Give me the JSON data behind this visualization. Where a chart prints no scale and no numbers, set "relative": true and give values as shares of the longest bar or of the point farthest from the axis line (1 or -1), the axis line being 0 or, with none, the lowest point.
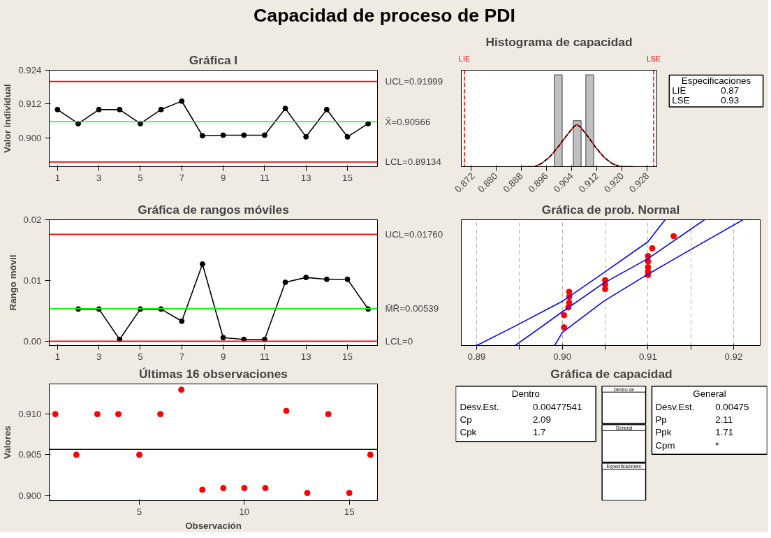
{
  "chart_data": [
    {
      "type": "other",
      "title": "Capacidad de proceso de PDI"
    },
    {
      "type": "line",
      "title": "Gráfica I",
      "ylabel": "Valor individual",
      "marker": "circle",
      "x": [
        1,
        2,
        3,
        4,
        5,
        6,
        7,
        8,
        9,
        10,
        11,
        12,
        13,
        14,
        15,
        16
      ],
      "series": [
        {
          "color": "#000000",
          "values": [
            0.91,
            0.905,
            0.91,
            0.91,
            0.905,
            0.91,
            0.913,
            0.9007,
            0.9009,
            0.9009,
            0.9009,
            0.9104,
            0.9003,
            0.91,
            0.9003,
            0.905
          ]
        }
      ],
      "xlim": [
        0.6,
        16.45
      ],
      "xticks": [
        1,
        3,
        5,
        7,
        9,
        11,
        13,
        15
      ],
      "ylim": [
        0.8897,
        0.924
      ],
      "yticks": [
        {
          "value": 0.9,
          "label": "0.900"
        },
        0.912,
        0.924
      ],
      "ref_lines": [
        {
          "axis": "y",
          "value": 0.91999,
          "label": "UCL=0.91999",
          "color": "#ff0000"
        },
        {
          "axis": "y",
          "value": 0.90566,
          "label": "X̄=0.90566",
          "color": "#00ff00"
        },
        {
          "axis": "y",
          "value": 0.89134,
          "label": "LCL=0.89134",
          "color": "#ff0000"
        }
      ]
    },
    {
      "type": "histogram",
      "title": "Histograma de capacidad",
      "relative": true,
      "series": [
        {
          "type": "histogram",
          "color": "#c0c0c0",
          "bins": [
            0.8985,
            0.901,
            0.9045,
            0.907,
            0.9085,
            0.911
          ],
          "values": [
            1,
            0,
            0.5,
            0,
            1
          ]
        },
        {
          "type": "line",
          "color": "#ff0000",
          "x": [
            0.8878,
            0.8923,
            0.8944,
            0.8969,
            0.8994,
            0.9019,
            0.9044,
            0.9056,
            0.9068,
            0.9093,
            0.9118,
            0.9143,
            0.9168,
            0.9193,
            0.9234
          ],
          "values": [
            0,
            0,
            0.034,
            0.101,
            0.201,
            0.316,
            0.425,
            0.46,
            0.431,
            0.322,
            0.201,
            0.101,
            0.034,
            0,
            0
          ]
        },
        {
          "type": "line",
          "color": "#000000",
          "line_style": "dashed",
          "x": [
            0.8878,
            0.8923,
            0.8944,
            0.8969,
            0.8994,
            0.9019,
            0.9044,
            0.9056,
            0.9068,
            0.9093,
            0.9118,
            0.9143,
            0.9168,
            0.9193,
            0.9234
          ],
          "values": [
            0,
            0,
            0.034,
            0.101,
            0.201,
            0.316,
            0.425,
            0.46,
            0.431,
            0.322,
            0.201,
            0.101,
            0.034,
            0,
            0
          ]
        }
      ],
      "xlim": [
        0.869,
        0.931
      ],
      "xticks": [
        0.872,
        {
          "value": 0.88,
          "label": "0.880"
        },
        0.888,
        0.896,
        0.904,
        0.912,
        {
          "value": 0.92,
          "label": "0.920"
        },
        0.928
      ],
      "ref_lines": [
        {
          "axis": "x",
          "value": 0.87,
          "label": "LIE",
          "color": "#ff0000",
          "line_style": "dashed"
        },
        {
          "axis": "x",
          "value": 0.93,
          "label": "LSE",
          "color": "#ff0000",
          "line_style": "dashed"
        }
      ]
    },
    {
      "type": "other",
      "annotations": [
        "Especificaciones",
        "LIE\t0.87",
        "LSE\t0.93"
      ]
    },
    {
      "type": "line",
      "title": "Gráfica de rangos móviles",
      "ylabel": "Rango móvil",
      "marker": "circle",
      "series": [
        {
          "color": "#000000",
          "x": [
            2,
            3,
            4,
            5,
            6,
            7,
            8,
            9,
            10,
            11,
            12,
            13,
            14,
            15,
            16
          ],
          "values": [
            0.0053,
            0.0053,
            0.0003,
            0.0053,
            0.0053,
            0.0033,
            0.0127,
            0.0006,
            0.0003,
            0.0003,
            0.0097,
            0.0105,
            0.0102,
            0.0102,
            0.0053
          ]
        }
      ],
      "xlim": [
        0.6,
        16.45
      ],
      "xticks": [
        1,
        3,
        5,
        7,
        9,
        11,
        13,
        15
      ],
      "ylim": [
        -0.0007,
        0.02
      ],
      "yticks": [
        {
          "value": 0,
          "label": "0.00"
        },
        {
          "value": 0.01,
          "label": "0.01"
        },
        {
          "value": 0.02,
          "label": "0.02"
        }
      ],
      "ref_lines": [
        {
          "axis": "y",
          "value": 0.0176,
          "label": "UCL=0.01760",
          "color": "#ff0000"
        },
        {
          "axis": "y",
          "value": 0.00539,
          "label": "M̄R̄=0.00539",
          "color": "#00ff00"
        },
        {
          "axis": "y",
          "value": 0,
          "label": "LCL=0",
          "color": "#ff0000"
        }
      ]
    },
    {
      "type": "scatter",
      "title": "Gráfica de prob. Normal",
      "relative": true,
      "marker": "circle",
      "grid": "x",
      "series": [
        {
          "color": "#ff0000",
          "x": [
            0.9002,
            0.9002,
            0.9007,
            0.9008,
            0.9008,
            0.9008,
            0.905,
            0.905,
            0.905,
            0.91,
            0.91,
            0.91,
            0.91,
            0.91,
            0.9105,
            0.913
          ],
          "values": [
            0.144,
            0.241,
            0.303,
            0.34,
            0.388,
            0.427,
            0.449,
            0.485,
            0.52,
            0.561,
            0.588,
            0.623,
            0.67,
            0.711,
            0.773,
            0.87
          ]
        },
        {
          "type": "line",
          "marker": "none",
          "color": "#0000ff",
          "x": [
            0.8945,
            0.9,
            0.9048,
            0.91,
            0.9166
          ],
          "values": [
            0,
            0.268,
            0.495,
            0.691,
            1
          ]
        },
        {
          "type": "line",
          "marker": "none",
          "color": "#0000ff",
          "x": [
            0.8991,
            0.9,
            0.9048,
            0.91,
            0.9134,
            0.9211
          ],
          "values": [
            0,
            0.103,
            0.351,
            0.567,
            0.701,
            1
          ]
        },
        {
          "type": "line",
          "marker": "none",
          "color": "#0000ff",
          "x": [
            0.89,
            0.8945,
            0.9,
            0.9048,
            0.91,
            0.912
          ],
          "values": [
            0,
            0.155,
            0.351,
            0.577,
            0.825,
            1
          ]
        }
      ],
      "xlim": [
        0.8882,
        0.9231
      ],
      "xticks": [
        0.89,
        {
          "value": 0.895,
          "label": null
        },
        {
          "value": 0.9,
          "label": "0.90"
        },
        {
          "value": 0.905,
          "label": null
        },
        0.91,
        {
          "value": 0.915,
          "label": null
        },
        0.92
      ]
    },
    {
      "type": "scatter",
      "title": "Últimas 16 observaciones",
      "xlabel": "Observación",
      "ylabel": "Valores",
      "marker": "circle",
      "x": [
        1,
        2,
        3,
        4,
        5,
        6,
        7,
        8,
        9,
        10,
        11,
        12,
        13,
        14,
        15,
        16
      ],
      "series": [
        {
          "color": "#ff0000",
          "values": [
            0.91,
            0.905,
            0.91,
            0.91,
            0.905,
            0.91,
            0.913,
            0.9007,
            0.9009,
            0.9009,
            0.9009,
            0.9104,
            0.9003,
            0.91,
            0.9003,
            0.905
          ]
        }
      ],
      "xlim": [
        0.71,
        16.34
      ],
      "xticks": [
        5,
        10,
        15
      ],
      "ylim": [
        0.89936,
        0.91371
      ],
      "yticks": [
        {
          "value": 0.9,
          "label": "0.900"
        },
        0.905,
        {
          "value": 0.91,
          "label": "0.910"
        }
      ],
      "ref_lines": [
        {
          "axis": "y",
          "value": 0.90566,
          "color": "#000000"
        }
      ]
    },
    {
      "type": "other",
      "title": "Gráfica de capacidad",
      "annotations": [
        "Dentro",
        "Desv.Est.\t0.00477541",
        "Cp\t2.09",
        "Cpk\t1.7",
        "General",
        "Desv.Est.\t0.00475",
        "Pp\t2.11",
        "Ppk\t1.71",
        "Cpm\t*",
        "Dentro de",
        "General",
        "Especificaciones"
      ]
    }
  ]
}
